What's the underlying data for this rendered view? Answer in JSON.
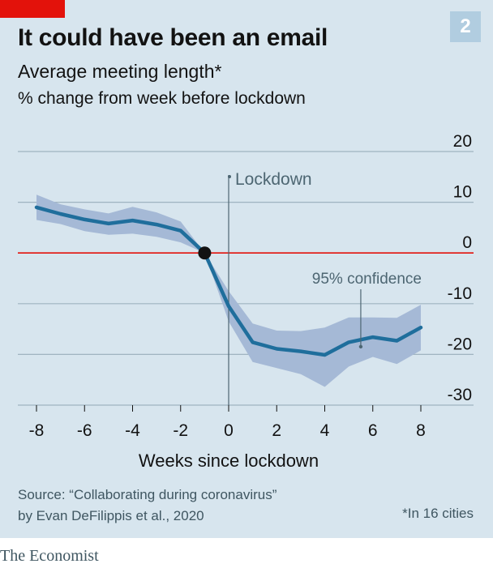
{
  "header": {
    "badge": "2",
    "title": "It could have been an email",
    "subtitle": "Average meeting length*",
    "unit_label": "% change from week before lockdown"
  },
  "footer": {
    "source_line1": "Source: “Collaborating during coronavirus”",
    "source_line2": "by Evan DeFilippis et al., 2020",
    "footnote": "*In 16 cities",
    "brand": "The Economist"
  },
  "colors": {
    "line": "#1f6e9c",
    "band": "#a5b9d6",
    "zero_line": "#e3120b",
    "grid": "#9fb3c0",
    "panel": "#d7e5ee",
    "marker": "#121212"
  },
  "chart_data": {
    "type": "line",
    "title": "It could have been an email",
    "xlabel": "Weeks since lockdown",
    "ylabel": "% change from week before lockdown",
    "xlim": [
      -8,
      8
    ],
    "ylim": [
      -30,
      20
    ],
    "xticks": [
      -8,
      -6,
      -4,
      -2,
      0,
      2,
      4,
      6,
      8
    ],
    "xtick_labels": [
      "-8",
      "-6",
      "-4",
      "-2",
      "0",
      "2",
      "4",
      "6",
      "8"
    ],
    "yticks": [
      20,
      10,
      0,
      -10,
      -20,
      -30
    ],
    "ytick_labels": [
      "20",
      "10",
      "0",
      "-10",
      "-20",
      "-30"
    ],
    "grid": true,
    "x": [
      -8,
      -7,
      -6,
      -5,
      -4,
      -3,
      -2,
      -1,
      0,
      1,
      2,
      3,
      4,
      5,
      6,
      7,
      8
    ],
    "series": [
      {
        "values": [
          9,
          7.7,
          6.6,
          5.8,
          6.4,
          5.6,
          4.4,
          0,
          -10.5,
          -17.6,
          -18.9,
          -19.4,
          -20.1,
          -17.6,
          -16.6,
          -17.3,
          -14.7
        ],
        "upper": [
          11.5,
          9.6,
          8.6,
          7.8,
          9.1,
          8.0,
          6.2,
          0,
          -7.5,
          -13.9,
          -15.3,
          -15.4,
          -14.7,
          -12.7,
          -12.7,
          -12.8,
          -10.2
        ],
        "lower": [
          6.5,
          5.7,
          4.3,
          3.6,
          3.8,
          3.2,
          2.1,
          0,
          -13.5,
          -21.5,
          -22.7,
          -23.9,
          -26.4,
          -22.4,
          -20.5,
          -21.9,
          -19.2
        ]
      }
    ],
    "reference_point": {
      "x": -1,
      "y": 0
    },
    "annotations": [
      {
        "text": "Lockdown",
        "x": 0
      },
      {
        "text": "95% confidence",
        "x": 5.5,
        "y": -18
      }
    ]
  }
}
